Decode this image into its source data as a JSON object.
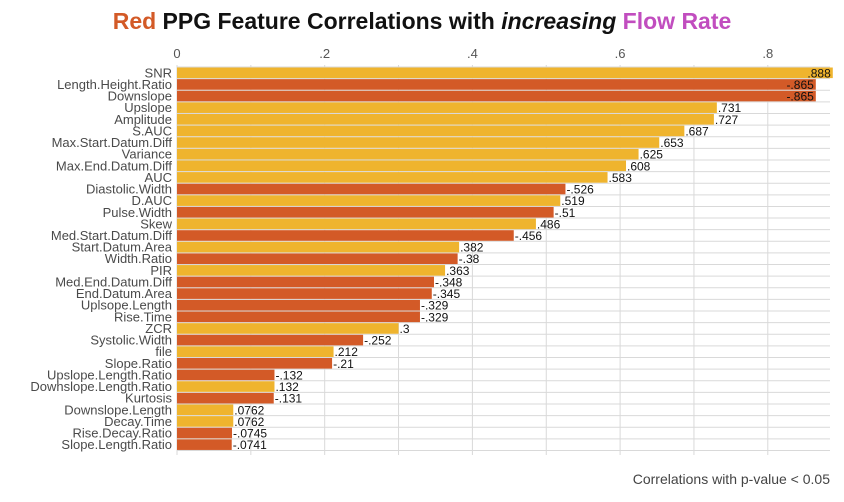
{
  "title": {
    "part_red": "Red",
    "part_main": "PPG Feature Correlations with",
    "part_italic": "increasing",
    "part_flow": "Flow Rate"
  },
  "caption": "Correlations with p-value < 0.05",
  "colors": {
    "positive": "#efb42e",
    "negative": "#d35a27",
    "title_red": "#d35a27",
    "title_flow": "#c14dbf",
    "grid": "#d9d9d9"
  },
  "chart_data": {
    "type": "bar",
    "orientation": "horizontal",
    "value_domain": [
      0,
      0.9
    ],
    "x_ticks": [
      {
        "value": 0,
        "label": "0"
      },
      {
        "value": 0.2,
        "label": ".2"
      },
      {
        "value": 0.4,
        "label": ".4"
      },
      {
        "value": 0.6,
        "label": ".6"
      },
      {
        "value": 0.8,
        "label": ".8"
      }
    ],
    "bar_length": "absolute correlation",
    "grid": true,
    "bars": [
      {
        "category": "SNR",
        "value": 0.888,
        "label": ".888"
      },
      {
        "category": "Length.Height.Ratio",
        "value": -0.865,
        "label": "-.865"
      },
      {
        "category": "Downslope",
        "value": -0.865,
        "label": "-.865"
      },
      {
        "category": "Upslope",
        "value": 0.731,
        "label": ".731"
      },
      {
        "category": "Amplitude",
        "value": 0.727,
        "label": ".727"
      },
      {
        "category": "S.AUC",
        "value": 0.687,
        "label": ".687"
      },
      {
        "category": "Max.Start.Datum.Diff",
        "value": 0.653,
        "label": ".653"
      },
      {
        "category": "Variance",
        "value": 0.625,
        "label": ".625"
      },
      {
        "category": "Max.End.Datum.Diff",
        "value": 0.608,
        "label": ".608"
      },
      {
        "category": "AUC",
        "value": 0.583,
        "label": ".583"
      },
      {
        "category": "Diastolic.Width",
        "value": -0.526,
        "label": "-.526"
      },
      {
        "category": "D.AUC",
        "value": 0.519,
        "label": ".519"
      },
      {
        "category": "Pulse.Width",
        "value": -0.51,
        "label": "-.51"
      },
      {
        "category": "Skew",
        "value": 0.486,
        "label": ".486"
      },
      {
        "category": "Med.Start.Datum.Diff",
        "value": -0.456,
        "label": "-.456"
      },
      {
        "category": "Start.Datum.Area",
        "value": 0.382,
        "label": ".382"
      },
      {
        "category": "Width.Ratio",
        "value": -0.38,
        "label": "-.38"
      },
      {
        "category": "PIR",
        "value": 0.363,
        "label": ".363"
      },
      {
        "category": "Med.End.Datum.Diff",
        "value": -0.348,
        "label": "-.348"
      },
      {
        "category": "End.Datum.Area",
        "value": -0.345,
        "label": "-.345"
      },
      {
        "category": "Uplsope.Length",
        "value": -0.329,
        "label": "-.329"
      },
      {
        "category": "Rise.Time",
        "value": -0.329,
        "label": "-.329"
      },
      {
        "category": "ZCR",
        "value": 0.3,
        "label": ".3"
      },
      {
        "category": "Systolic.Width",
        "value": -0.252,
        "label": "-.252"
      },
      {
        "category": "file",
        "value": 0.212,
        "label": ".212"
      },
      {
        "category": "Slope.Ratio",
        "value": -0.21,
        "label": "-.21"
      },
      {
        "category": "Upslope.Length.Ratio",
        "value": -0.132,
        "label": "-.132"
      },
      {
        "category": "Dowhslope.Length.Ratio",
        "value": 0.132,
        "label": ".132"
      },
      {
        "category": "Kurtosis",
        "value": -0.131,
        "label": "-.131"
      },
      {
        "category": "Downslope.Length",
        "value": 0.0762,
        "label": ".0762"
      },
      {
        "category": "Decay.Time",
        "value": 0.0762,
        "label": ".0762"
      },
      {
        "category": "Rise.Decay.Ratio",
        "value": -0.0745,
        "label": "-.0745"
      },
      {
        "category": "Slope.Length.Ratio",
        "value": -0.0741,
        "label": "-.0741"
      }
    ]
  }
}
